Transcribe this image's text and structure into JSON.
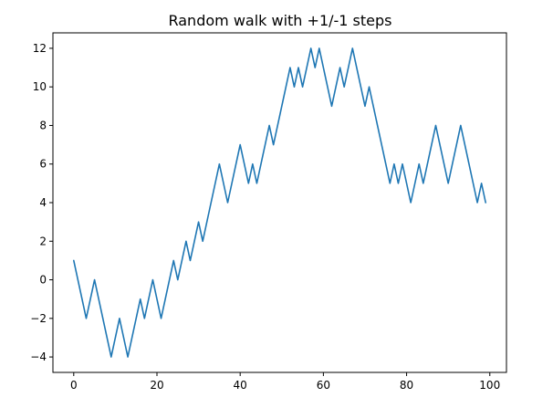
{
  "chart_data": {
    "type": "line",
    "title": "Random walk with +1/-1 steps",
    "xlabel": "",
    "ylabel": "",
    "xlim": [
      -5,
      104
    ],
    "ylim": [
      -4.8,
      12.8
    ],
    "xticks": [
      0,
      20,
      40,
      60,
      80,
      100
    ],
    "yticks": [
      -4,
      -2,
      0,
      2,
      4,
      6,
      8,
      10,
      12
    ],
    "grid": false,
    "colors": {
      "series": "#1f77b4"
    },
    "series": [
      {
        "x": [
          0,
          1,
          2,
          3,
          4,
          5,
          6,
          7,
          8,
          9,
          10,
          11,
          12,
          13,
          14,
          15,
          16,
          17,
          18,
          19,
          20,
          21,
          22,
          23,
          24,
          25,
          26,
          27,
          28,
          29,
          30,
          31,
          32,
          33,
          34,
          35,
          36,
          37,
          38,
          39,
          40,
          41,
          42,
          43,
          44,
          45,
          46,
          47,
          48,
          49,
          50,
          51,
          52,
          53,
          54,
          55,
          56,
          57,
          58,
          59,
          60,
          61,
          62,
          63,
          64,
          65,
          66,
          67,
          68,
          69,
          70,
          71,
          72,
          73,
          74,
          75,
          76,
          77,
          78,
          79,
          80,
          81,
          82,
          83,
          84,
          85,
          86,
          87,
          88,
          89,
          90,
          91,
          92,
          93,
          94,
          95,
          96,
          97,
          98,
          99
        ],
        "y": [
          1,
          0,
          -1,
          -2,
          -1,
          0,
          -1,
          -2,
          -3,
          -4,
          -3,
          -2,
          -3,
          -4,
          -3,
          -2,
          -1,
          -2,
          -1,
          0,
          -1,
          -2,
          -1,
          0,
          1,
          0,
          1,
          2,
          1,
          2,
          3,
          2,
          3,
          4,
          5,
          6,
          5,
          4,
          5,
          6,
          7,
          6,
          5,
          6,
          5,
          6,
          7,
          8,
          7,
          8,
          9,
          10,
          11,
          10,
          11,
          10,
          11,
          12,
          11,
          12,
          11,
          10,
          9,
          10,
          11,
          10,
          11,
          12,
          11,
          10,
          9,
          10,
          9,
          8,
          7,
          6,
          5,
          6,
          5,
          6,
          5,
          4,
          5,
          6,
          5,
          6,
          7,
          8,
          7,
          6,
          5,
          6,
          7,
          8,
          7,
          6,
          5,
          4,
          5,
          4
        ]
      }
    ]
  }
}
